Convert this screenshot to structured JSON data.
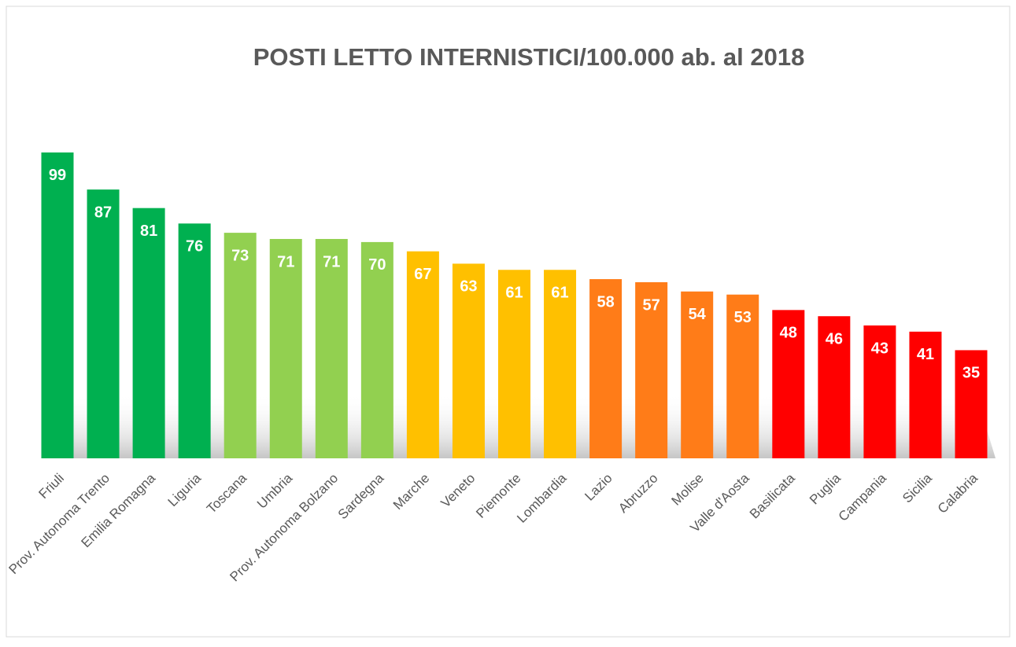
{
  "chart_data": {
    "type": "bar",
    "title": "POSTI LETTO INTERNISTICI/100.000 ab. al 2018",
    "categories": [
      "Friuli",
      "Prov. Autonoma Trento",
      "Emilia Romagna",
      "Liguria",
      "Toscana",
      "Umbria",
      "Prov. Autonoma Bolzano",
      "Sardegna",
      "Marche",
      "Veneto",
      "Piemonte",
      "Lombardia",
      "Lazio",
      "Abruzzo",
      "Molise",
      "Valle d'Aosta",
      "Basilicata",
      "Puglia",
      "Campania",
      "Sicilia",
      "Calabria"
    ],
    "values": [
      99,
      87,
      81,
      76,
      73,
      71,
      71,
      70,
      67,
      63,
      61,
      61,
      58,
      57,
      54,
      53,
      48,
      46,
      43,
      41,
      35
    ],
    "colors": [
      "#00b050",
      "#00b050",
      "#00b050",
      "#00b050",
      "#92d050",
      "#92d050",
      "#92d050",
      "#92d050",
      "#ffc000",
      "#ffc000",
      "#ffc000",
      "#ffc000",
      "#ff7c18",
      "#ff7c18",
      "#ff7c18",
      "#ff7c18",
      "#ff0000",
      "#ff0000",
      "#ff0000",
      "#ff0000",
      "#ff0000"
    ],
    "ylim": [
      0,
      100
    ]
  }
}
